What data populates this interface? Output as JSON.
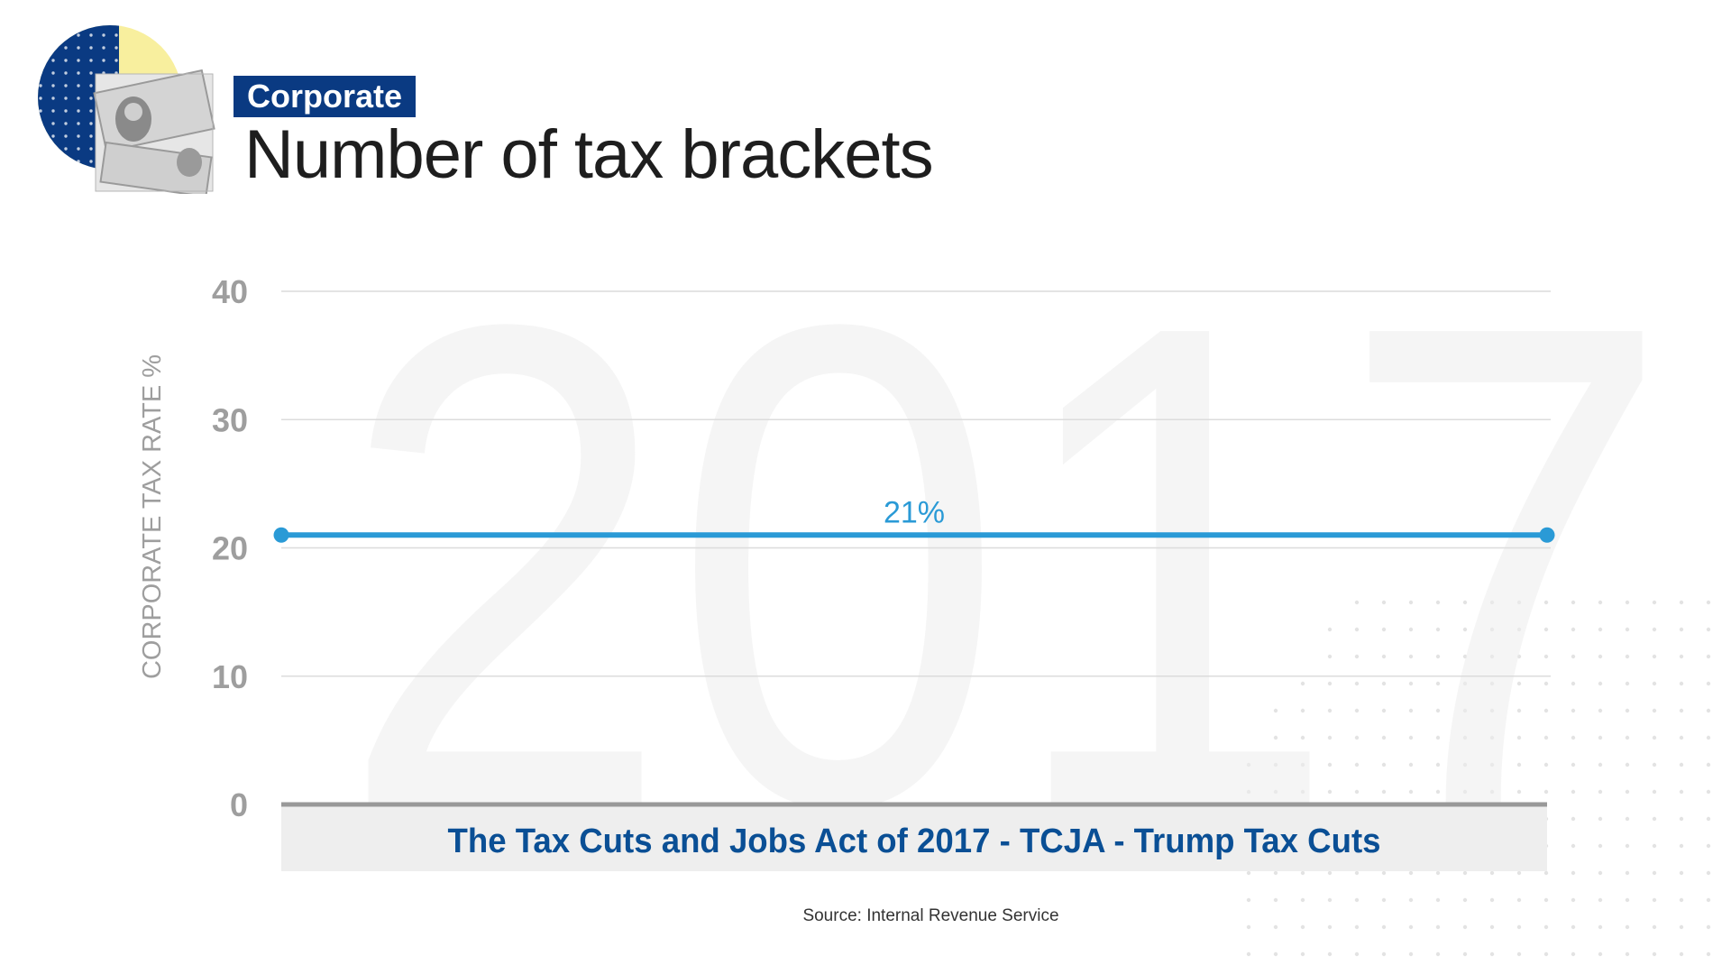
{
  "header": {
    "category": "Corporate",
    "title": "Number of tax brackets"
  },
  "background": {
    "watermark_year": "2017"
  },
  "chart_data": {
    "type": "line",
    "ylabel": "CORPORATE TAX RATE %",
    "ylim": [
      0,
      40
    ],
    "yticks": [
      0,
      10,
      20,
      30,
      40
    ],
    "grid": true,
    "x_category_band": "The Tax Cuts and Jobs Act of 2017 - TCJA - Trump Tax Cuts",
    "series": [
      {
        "values": [
          21,
          21
        ],
        "color": "#2a9ad6",
        "label": "21%"
      }
    ]
  },
  "source": "Source: Internal Revenue Service",
  "colors": {
    "accent_navy": "#0a3a82",
    "line_blue": "#2a9ad6",
    "logo_yellow": "#f8ef9e",
    "axis_gray": "#999999"
  }
}
